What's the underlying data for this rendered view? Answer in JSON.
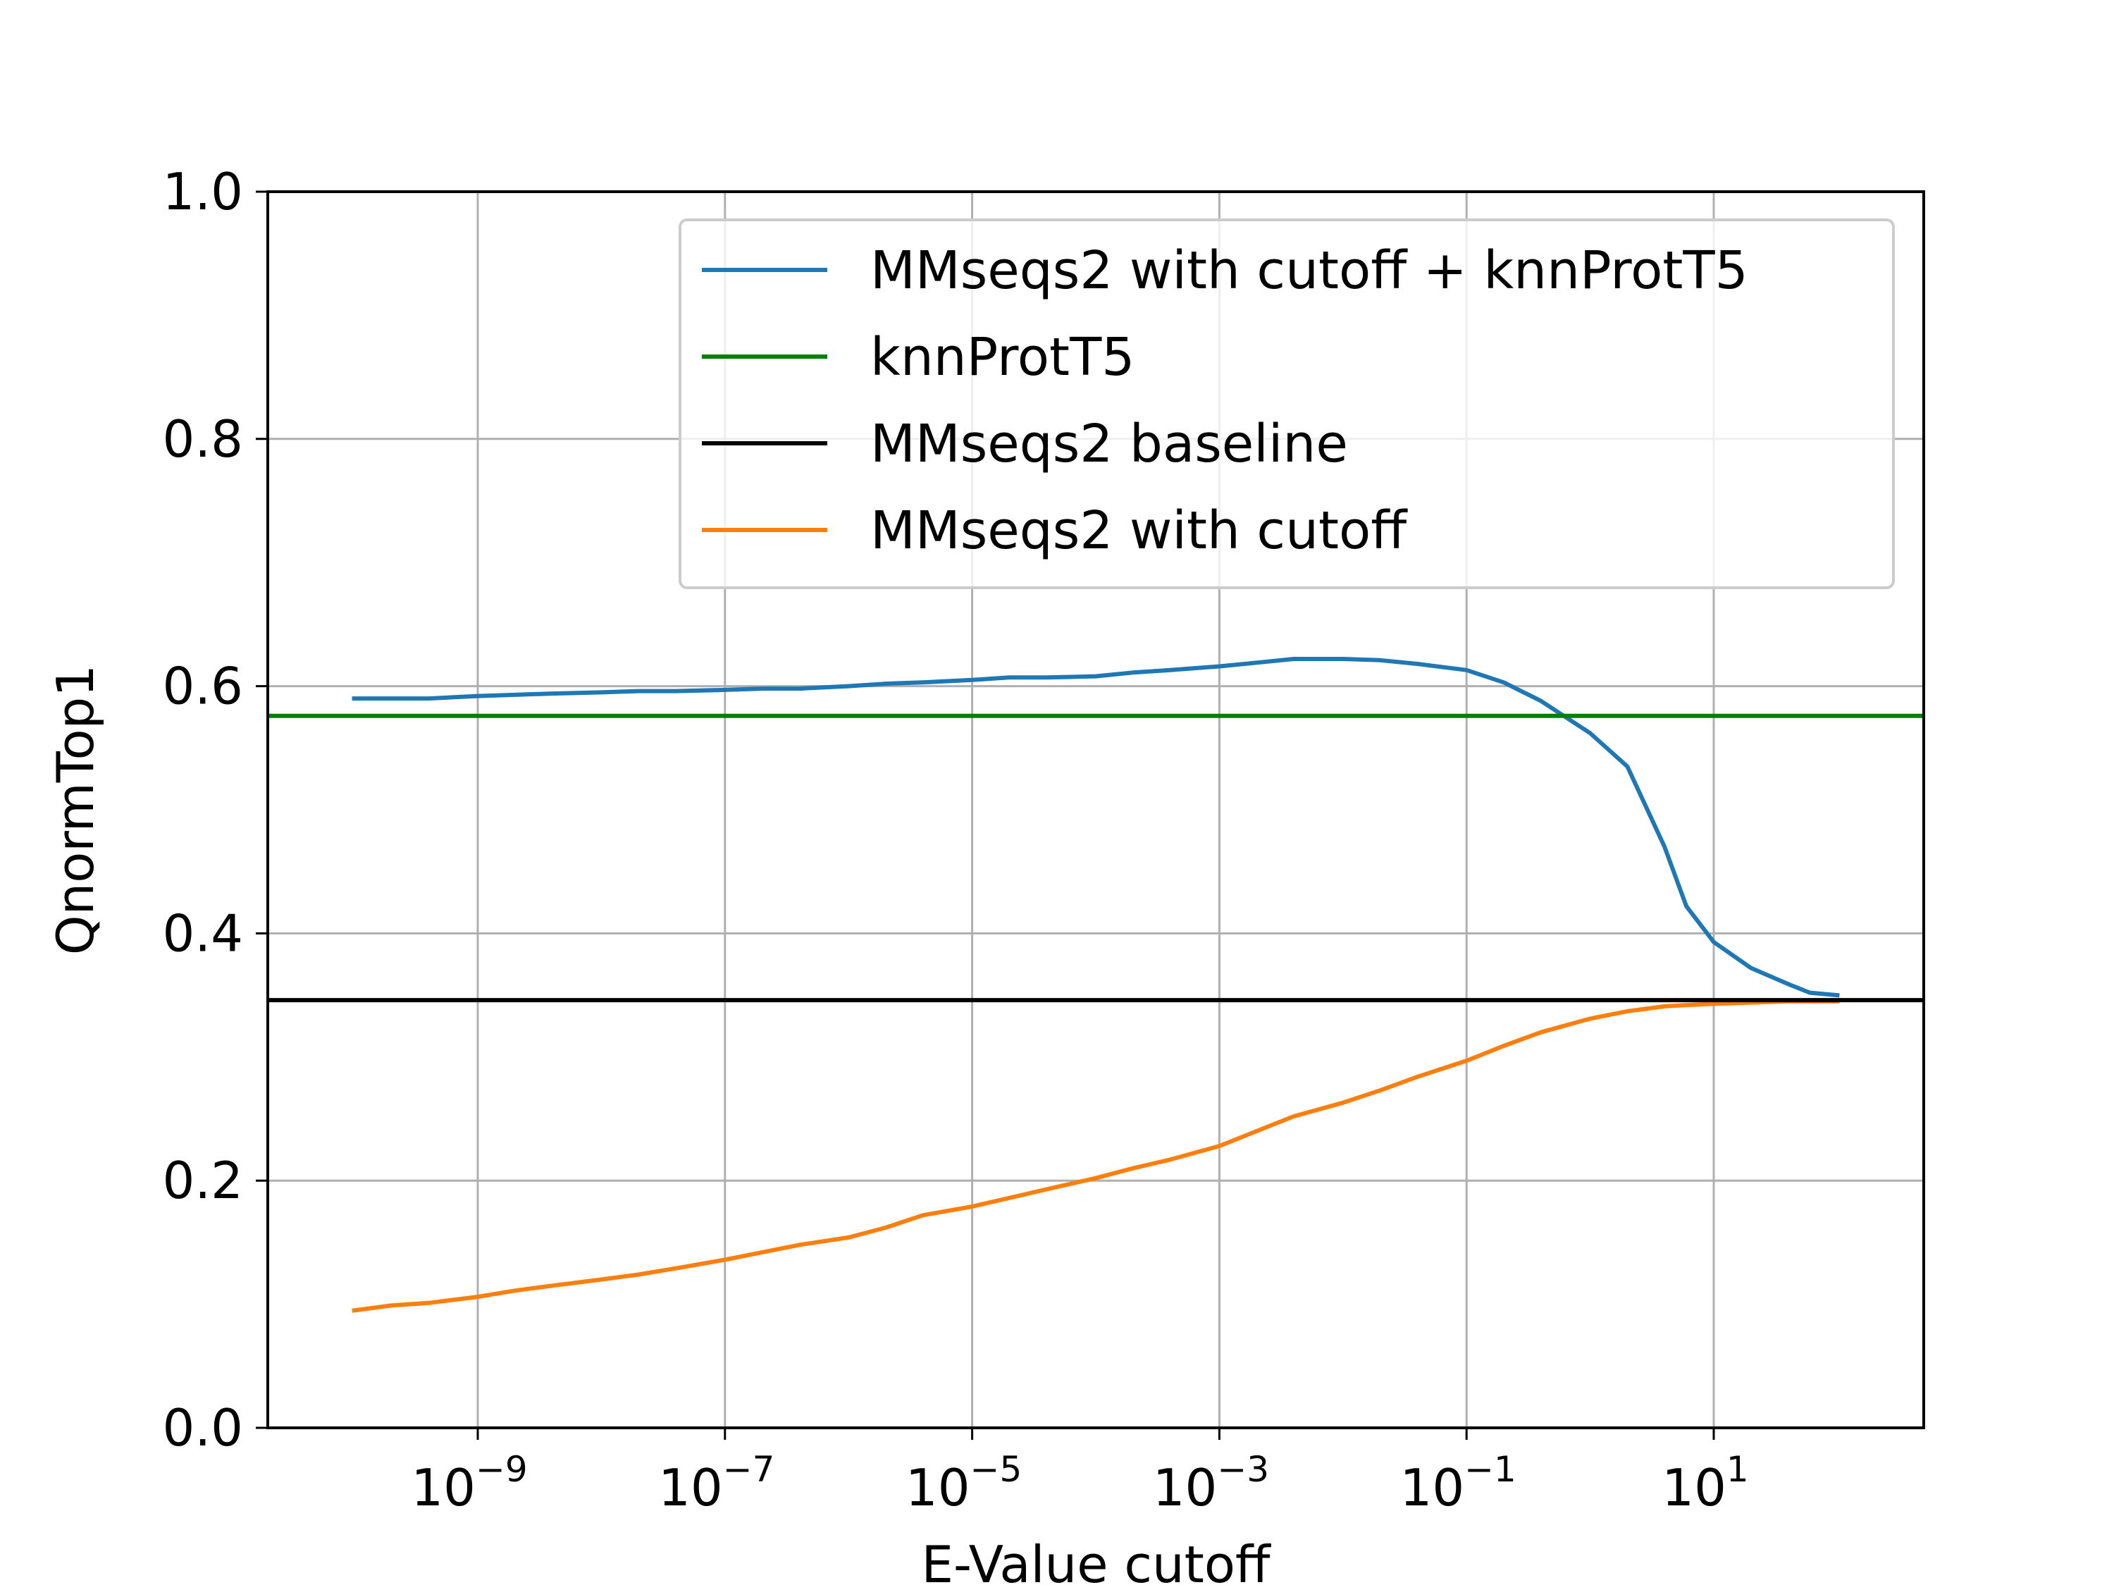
{
  "chart_data": {
    "type": "line",
    "title": "",
    "xlabel": "E-Value cutoff",
    "ylabel": "QnormTop1",
    "x_scale": "log",
    "xlim": [
      2e-11,
      500
    ],
    "ylim": [
      0.0,
      1.0
    ],
    "grid": true,
    "legend_position": "upper right",
    "x_ticks": [
      {
        "value": 1e-09,
        "base": "10",
        "exp": "−9"
      },
      {
        "value": 1e-07,
        "base": "10",
        "exp": "−7"
      },
      {
        "value": 1e-05,
        "base": "10",
        "exp": "−5"
      },
      {
        "value": 0.001,
        "base": "10",
        "exp": "−3"
      },
      {
        "value": 0.1,
        "base": "10",
        "exp": "−1"
      },
      {
        "value": 10,
        "base": "10",
        "exp": "1"
      }
    ],
    "y_ticks": [
      {
        "value": 0.0,
        "label": "0.0"
      },
      {
        "value": 0.2,
        "label": "0.2"
      },
      {
        "value": 0.4,
        "label": "0.4"
      },
      {
        "value": 0.6,
        "label": "0.6"
      },
      {
        "value": 0.8,
        "label": "0.8"
      },
      {
        "value": 1.0,
        "label": "1.0"
      }
    ],
    "series": [
      {
        "name": "MMseqs2 with cutoff + knnProtT5",
        "color": "#1f77b4",
        "style": "line",
        "x": [
          1e-10,
          2e-10,
          4e-10,
          1e-09,
          2e-09,
          4e-09,
          1e-08,
          2e-08,
          4e-08,
          1e-07,
          2e-07,
          4e-07,
          1e-06,
          2e-06,
          4e-06,
          1e-05,
          2e-05,
          4e-05,
          0.0001,
          0.0002,
          0.0004,
          0.001,
          0.002,
          0.004,
          0.01,
          0.02,
          0.04,
          0.1,
          0.2,
          0.4,
          1,
          2,
          4,
          6,
          10,
          20,
          40,
          60,
          100
        ],
        "y": [
          0.59,
          0.59,
          0.59,
          0.592,
          0.593,
          0.594,
          0.595,
          0.596,
          0.596,
          0.597,
          0.598,
          0.598,
          0.6,
          0.602,
          0.603,
          0.605,
          0.607,
          0.607,
          0.608,
          0.611,
          0.613,
          0.616,
          0.619,
          0.622,
          0.622,
          0.621,
          0.618,
          0.613,
          0.603,
          0.588,
          0.562,
          0.535,
          0.47,
          0.422,
          0.393,
          0.372,
          0.359,
          0.352,
          0.35
        ]
      },
      {
        "name": "knnProtT5",
        "color": "#008000",
        "style": "hline",
        "y_value": 0.576
      },
      {
        "name": "MMseqs2 baseline",
        "color": "#000000",
        "style": "hline",
        "y_value": 0.346
      },
      {
        "name": "MMseqs2 with cutoff",
        "color": "#ff7f0e",
        "style": "line",
        "x": [
          1e-10,
          2e-10,
          4e-10,
          1e-09,
          2e-09,
          4e-09,
          1e-08,
          2e-08,
          4e-08,
          1e-07,
          2e-07,
          4e-07,
          1e-06,
          2e-06,
          4e-06,
          1e-05,
          2e-05,
          4e-05,
          0.0001,
          0.0002,
          0.0004,
          0.001,
          0.002,
          0.004,
          0.01,
          0.02,
          0.04,
          0.1,
          0.2,
          0.4,
          1,
          2,
          4,
          6,
          10,
          20,
          40,
          60,
          100
        ],
        "y": [
          0.095,
          0.099,
          0.101,
          0.106,
          0.111,
          0.115,
          0.12,
          0.124,
          0.129,
          0.136,
          0.142,
          0.148,
          0.154,
          0.162,
          0.172,
          0.179,
          0.186,
          0.193,
          0.202,
          0.21,
          0.217,
          0.228,
          0.24,
          0.252,
          0.263,
          0.273,
          0.284,
          0.297,
          0.309,
          0.32,
          0.331,
          0.337,
          0.341,
          0.342,
          0.343,
          0.344,
          0.345,
          0.345,
          0.345
        ]
      }
    ]
  }
}
